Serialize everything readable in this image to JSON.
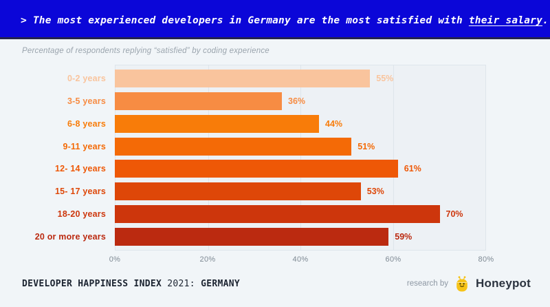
{
  "header": {
    "prefix": "> The most experienced developers in Germany are the most satisfied with ",
    "underlined": "their salary",
    "suffix": "."
  },
  "subtitle": "Percentage of respondents replying “satisfied” by coding experience",
  "chart_data": {
    "type": "bar",
    "orientation": "horizontal",
    "title": "Percentage of respondents replying “satisfied” by coding experience",
    "categories": [
      "0-2 years",
      "3-5 years",
      "6-8 years",
      "9-11 years",
      "12- 14 years",
      "15- 17 years",
      "18-20 years",
      "20 or more years"
    ],
    "values": [
      55,
      36,
      44,
      51,
      61,
      53,
      70,
      59
    ],
    "value_labels": [
      "55%",
      "36%",
      "44%",
      "51%",
      "61%",
      "53%",
      "70%",
      "59%"
    ],
    "bar_colors": [
      "#f9c49d",
      "#f78c43",
      "#f87c09",
      "#f46a06",
      "#ee5806",
      "#de4708",
      "#cd360c",
      "#bb2a10"
    ],
    "xlim": [
      0,
      80
    ],
    "x_tick_values": [
      0,
      20,
      40,
      60,
      80
    ],
    "x_tick_labels": [
      "0%",
      "20%",
      "40%",
      "60%",
      "80%"
    ],
    "grid": true,
    "legend": false,
    "xlabel": "",
    "ylabel": "coding experience"
  },
  "footer": {
    "index_title": "DEVELOPER HAPPINESS INDEX",
    "index_year": " 2021: ",
    "index_country": "GERMANY",
    "research_by": "research by",
    "brand_name": "Honeypot",
    "brand_icon": "honeypot-bee-logo"
  },
  "colors": {
    "banner_bg": "#0b06d8",
    "banner_border": "#23234d",
    "page_bg": "#f1f5f8",
    "plot_bg": "#edf1f5",
    "grid_color": "#dee5eb",
    "axis_text": "#7e8993",
    "subtitle_text": "#9aa4ad",
    "footer_text": "#1c2431",
    "research_text": "#8d97a3",
    "brand_text": "#2b333f",
    "bee_yellow": "#f6c318"
  }
}
